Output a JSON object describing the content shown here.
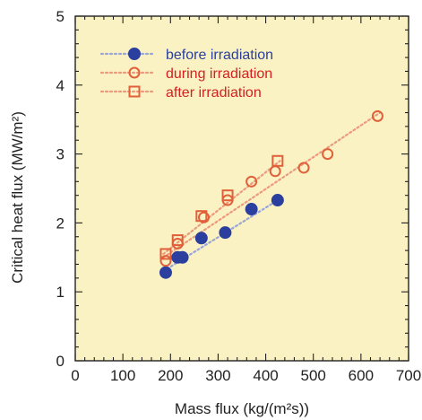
{
  "chart_data": {
    "type": "scatter",
    "title": "",
    "xlabel": "Mass flux (kg/(m²s))",
    "ylabel": "Critical heat flux (MW/m²)",
    "xlim": [
      0,
      700
    ],
    "ylim": [
      0,
      5
    ],
    "x_ticks": [
      "0",
      "100",
      "200",
      "300",
      "400",
      "500",
      "600",
      "700"
    ],
    "y_ticks": [
      "0",
      "1",
      "2",
      "3",
      "4",
      "5"
    ],
    "grid": false,
    "legend_position": "top-left",
    "background_color": "#fbf2c4",
    "series": [
      {
        "name": "before irradiation",
        "marker": "filled-circle",
        "color": "#2a3f9e",
        "text_color": "#2a3f9e",
        "fit_line_color": "#9aa6d6",
        "x": [
          190,
          215,
          225,
          265,
          315,
          370,
          425
        ],
        "y": [
          1.28,
          1.5,
          1.5,
          1.78,
          1.86,
          2.2,
          2.33
        ],
        "fit": [
          [
            185,
            1.3
          ],
          [
            430,
            2.35
          ]
        ]
      },
      {
        "name": "during irradiation",
        "marker": "open-circle",
        "color": "#e0603a",
        "text_color": "#d42020",
        "fit_line_color": "#ec9a7e",
        "x": [
          190,
          215,
          270,
          320,
          370,
          420,
          480,
          530,
          635
        ],
        "y": [
          1.45,
          1.7,
          2.08,
          2.33,
          2.6,
          2.75,
          2.8,
          3.0,
          3.55
        ],
        "fit": [
          [
            185,
            1.5
          ],
          [
            640,
            3.6
          ]
        ]
      },
      {
        "name": "after irradiation",
        "marker": "open-square",
        "color": "#e0603a",
        "text_color": "#d42020",
        "fit_line_color": "#ec9a7e",
        "x": [
          190,
          215,
          265,
          320,
          425
        ],
        "y": [
          1.55,
          1.75,
          2.1,
          2.4,
          2.9
        ],
        "fit": [
          [
            185,
            1.55
          ],
          [
            430,
            2.9
          ]
        ]
      }
    ]
  }
}
